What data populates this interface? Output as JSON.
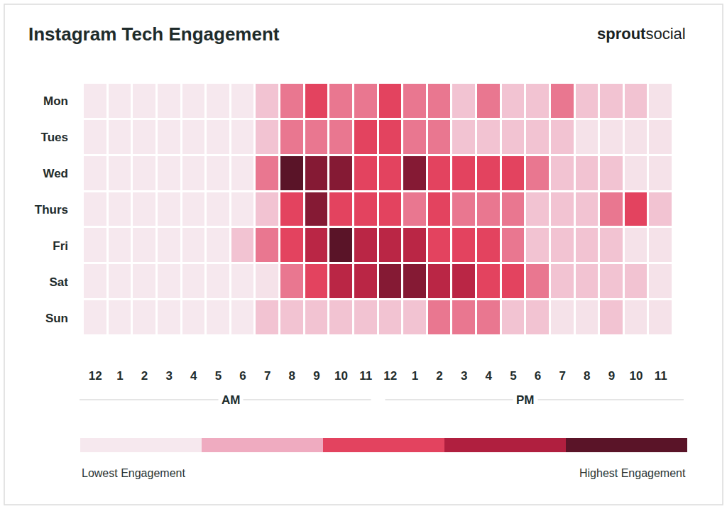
{
  "chart_data": {
    "type": "heatmap",
    "title": "Instagram Tech Engagement",
    "brand": {
      "bold": "sprout",
      "regular": "social"
    },
    "categories": [
      "12",
      "1",
      "2",
      "3",
      "4",
      "5",
      "6",
      "7",
      "8",
      "9",
      "10",
      "11",
      "12",
      "1",
      "2",
      "3",
      "4",
      "5",
      "6",
      "7",
      "8",
      "9",
      "10",
      "11"
    ],
    "period_labels": [
      "AM",
      "PM"
    ],
    "rows": [
      "Mon",
      "Tues",
      "Wed",
      "Thurs",
      "Fri",
      "Sat",
      "Sun"
    ],
    "cells": [
      [
        0,
        0,
        0,
        0,
        0,
        0,
        0,
        0.6,
        1.5,
        2,
        1.5,
        1.5,
        2,
        1.5,
        1.5,
        0.6,
        1.5,
        0.6,
        0.6,
        1.5,
        0.6,
        0.6,
        0.6,
        0.1
      ],
      [
        0,
        0,
        0,
        0,
        0,
        0,
        0,
        0.6,
        1.5,
        1.5,
        1.5,
        2,
        2,
        1.5,
        1.5,
        0.6,
        0.6,
        0.6,
        0.6,
        0.6,
        0.1,
        0.1,
        0.1,
        0.1
      ],
      [
        0,
        0,
        0,
        0,
        0,
        0,
        0,
        1.5,
        4,
        3.5,
        3.5,
        2,
        2,
        3.5,
        2,
        2,
        2,
        2,
        1.5,
        0.6,
        0.6,
        0.6,
        0.1,
        0.1
      ],
      [
        0,
        0,
        0,
        0,
        0,
        0,
        0,
        0.6,
        2,
        3.5,
        2,
        2,
        2,
        1.5,
        2,
        1.5,
        1.5,
        1.5,
        0.6,
        0.6,
        0.6,
        1.5,
        2,
        0.6
      ],
      [
        0,
        0,
        0,
        0,
        0,
        0,
        0.6,
        1.5,
        2,
        2.8,
        4,
        2.8,
        2.8,
        2.8,
        2,
        2,
        2,
        1.5,
        0.6,
        0.6,
        0.6,
        0.6,
        0.1,
        0.1
      ],
      [
        0,
        0,
        0,
        0,
        0,
        0,
        0,
        0.1,
        1.5,
        2,
        2.8,
        2.8,
        3.5,
        3.5,
        2.8,
        2.8,
        2,
        2,
        1.5,
        0.6,
        0.6,
        0.6,
        0.6,
        0.1
      ],
      [
        0,
        0,
        0,
        0,
        0,
        0,
        0,
        0.6,
        0.6,
        0.6,
        0.6,
        0.6,
        0.6,
        0.6,
        1.5,
        1.5,
        1.5,
        0.6,
        0.6,
        0.1,
        0.1,
        0.6,
        0.1,
        0.1
      ]
    ],
    "zlim": [
      0,
      4
    ],
    "colors": [
      "#f6e8ee",
      "#efabc0",
      "#e3435f",
      "#b01f3f",
      "#5a1428"
    ],
    "scale_labels": [
      "Lowest Engagement",
      "Highest Engagement"
    ]
  }
}
